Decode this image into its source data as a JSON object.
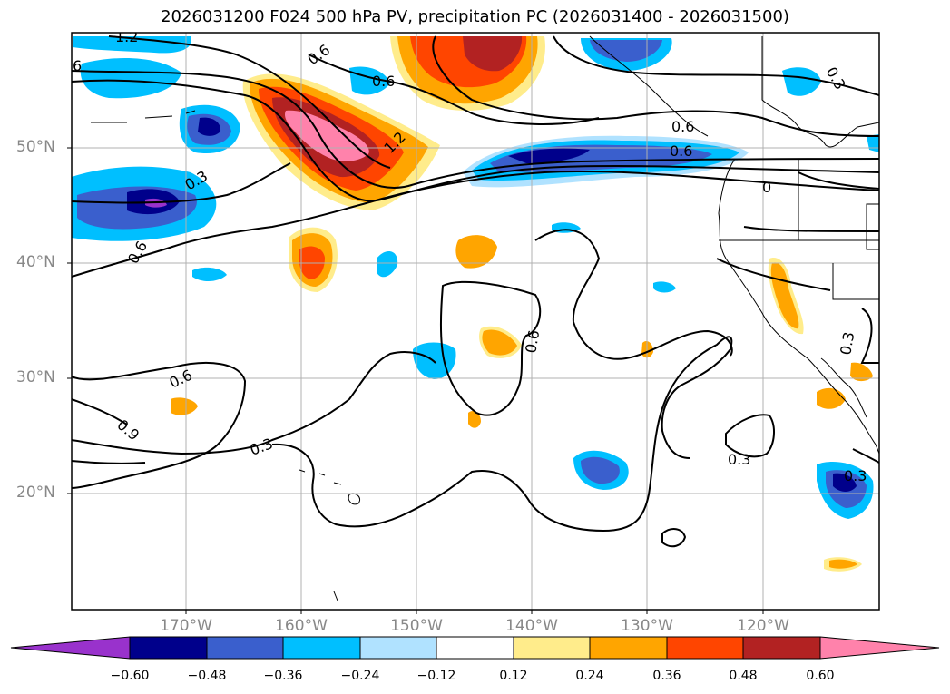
{
  "title": "2026031200 F024 500 hPa PV, precipitation PC (2026031400 - 2026031500)",
  "latitude_labels": [
    "50°N",
    "40°N",
    "30°N",
    "20°N"
  ],
  "longitude_labels": [
    "170°W",
    "160°W",
    "150°W",
    "140°W",
    "130°W",
    "120°W"
  ],
  "contour_labels": [
    "1.2",
    "6",
    "0.6",
    "0.6",
    "0.3",
    "0.3",
    "0.6",
    "1.2",
    "0.6",
    "0",
    "0.6",
    "0.6",
    "0.6",
    "0.9",
    "0.3",
    "0.3",
    "0.3",
    "0.3"
  ],
  "colorbar": {
    "tick_labels": [
      "−0.60",
      "−0.48",
      "−0.36",
      "−0.24",
      "−0.12",
      "0.12",
      "0.24",
      "0.36",
      "0.48",
      "0.60"
    ],
    "colors": [
      "#9932CC",
      "#00008B",
      "#3A5FCD",
      "#00BFFF",
      "#B0E2FF",
      "#FFFFFF",
      "#FFEC8B",
      "#FFA500",
      "#FF4500",
      "#B22222",
      "#FF82AB"
    ]
  },
  "colors": {
    "land_outline": "#000000",
    "grid": "#b0b0b0",
    "contour": "#000000"
  }
}
